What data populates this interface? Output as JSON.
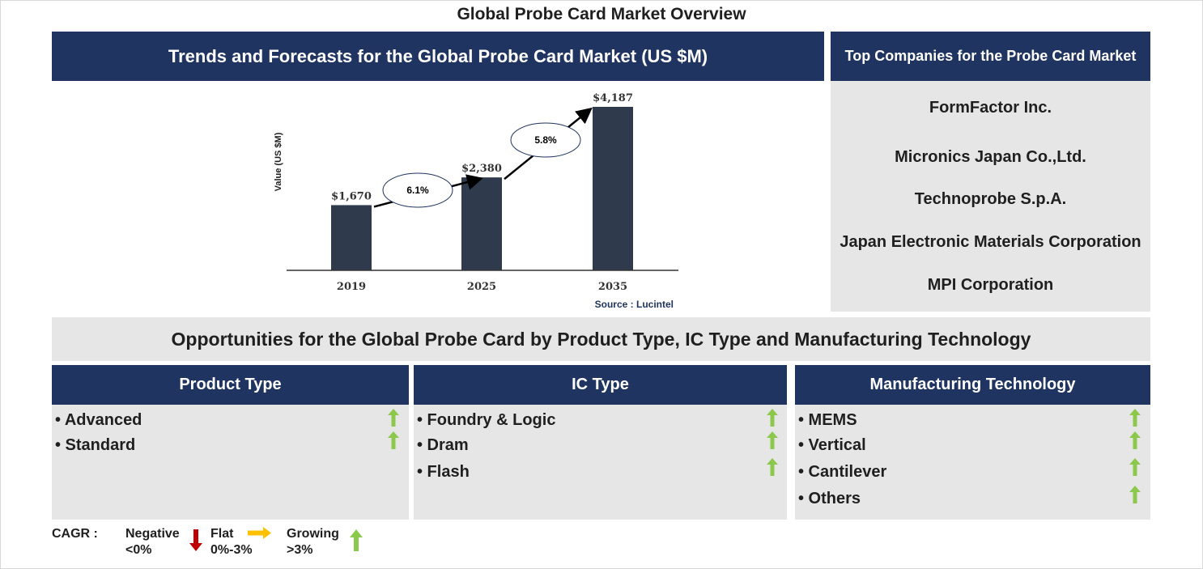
{
  "page_title": "Global Probe Card Market Overview",
  "trend_header": "Trends and Forecasts for the Global Probe Card Market (US $M)",
  "companies_header": "Top Companies for the Probe Card Market",
  "companies": [
    "FormFactor Inc.",
    "Micronics Japan Co.,Ltd.",
    "Technoprobe S.p.A.",
    "Japan Electronic Materials Corporation",
    "MPI Corporation"
  ],
  "chart_data": {
    "type": "bar",
    "categories": [
      "2019",
      "2025",
      "2035"
    ],
    "values": [
      1670,
      2380,
      4187
    ],
    "value_labels": [
      "$1,670",
      "$2,380",
      "$4,187"
    ],
    "ylabel": "Value (US $M)",
    "source": "Source : Lucintel",
    "cagr_labels": [
      "6.1%",
      "5.8%"
    ],
    "bar_color": "#2f3a4d",
    "grid": false
  },
  "opportunities_title": "Opportunities for the Global Probe Card by Product Type, IC Type and Manufacturing Technology",
  "segments": [
    {
      "title": "Product Type",
      "items": [
        "• Advanced",
        "• Standard"
      ],
      "trend": [
        "growing",
        "growing"
      ]
    },
    {
      "title": "IC Type",
      "items": [
        "• Foundry & Logic",
        "• Dram",
        "• Flash"
      ],
      "trend": [
        "growing",
        "growing",
        "growing"
      ]
    },
    {
      "title": "Manufacturing Technology",
      "items": [
        "• MEMS",
        "• Vertical",
        "• Cantilever",
        "• Others"
      ],
      "trend": [
        "growing",
        "growing",
        "growing",
        "growing"
      ]
    }
  ],
  "legend": {
    "cagr_label": "CAGR :",
    "negative_line1": "Negative",
    "negative_line2": "<0%",
    "flat_line1": "Flat",
    "flat_line2": "0%-3%",
    "growing_line1": "Growing",
    "growing_line2": ">3%"
  },
  "colors": {
    "navy": "#1f3461",
    "panel_grey": "#e6e6e6",
    "growing_arrow": "#8cc84b",
    "negative_arrow": "#c00000",
    "flat_arrow": "#ffc000"
  }
}
